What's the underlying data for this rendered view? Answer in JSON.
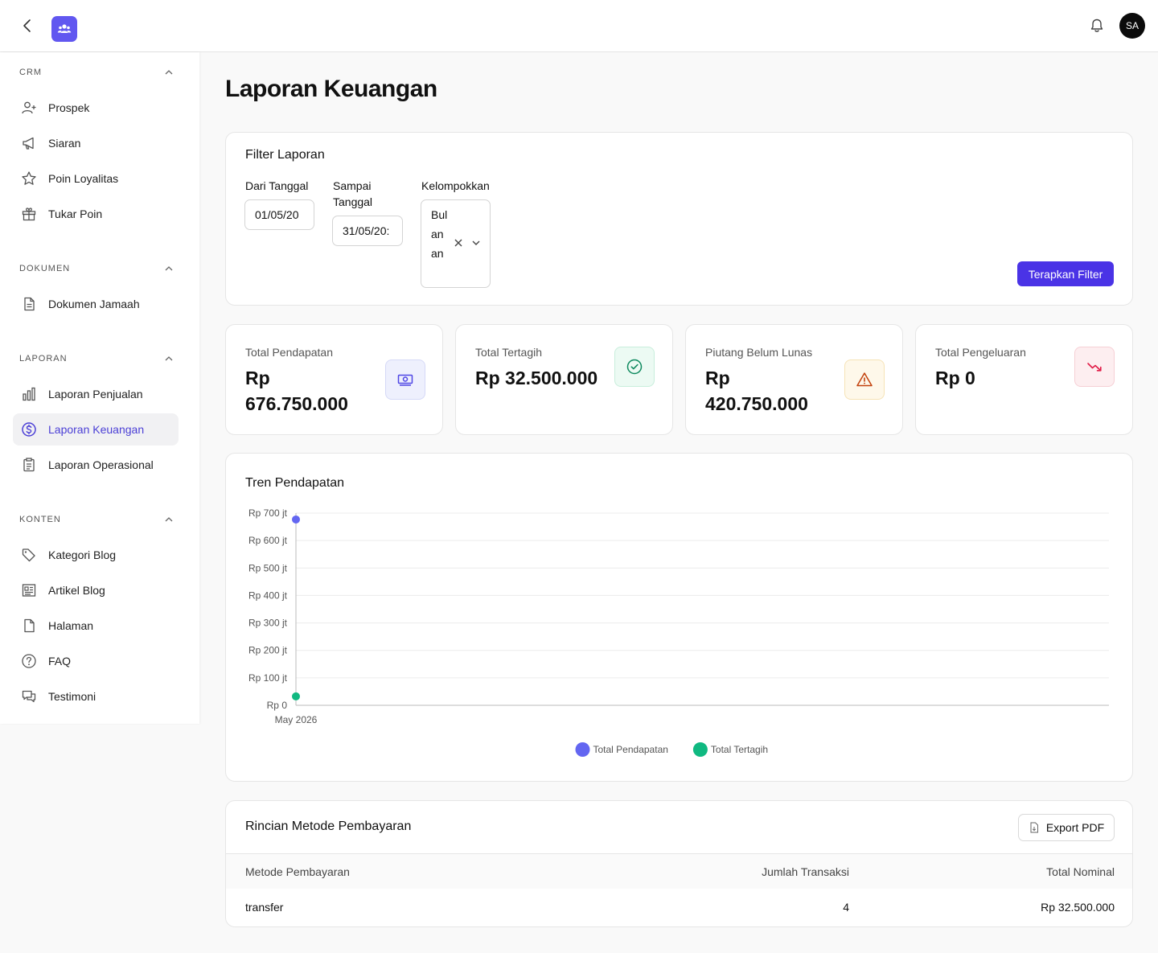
{
  "header": {
    "avatar_initials": "SA"
  },
  "sidebar": {
    "sections": [
      {
        "label": "CRM",
        "items": [
          {
            "label": "Prospek",
            "icon": "user-plus-icon"
          },
          {
            "label": "Siaran",
            "icon": "megaphone-icon"
          },
          {
            "label": "Poin Loyalitas",
            "icon": "star-icon"
          },
          {
            "label": "Tukar Poin",
            "icon": "gift-icon"
          }
        ]
      },
      {
        "label": "DOKUMEN",
        "items": [
          {
            "label": "Dokumen Jamaah",
            "icon": "document-icon"
          }
        ]
      },
      {
        "label": "LAPORAN",
        "items": [
          {
            "label": "Laporan Penjualan",
            "icon": "bar-chart-icon"
          },
          {
            "label": "Laporan Keuangan",
            "icon": "dollar-circle-icon",
            "active": true
          },
          {
            "label": "Laporan Operasional",
            "icon": "clipboard-icon"
          }
        ]
      },
      {
        "label": "KONTEN",
        "items": [
          {
            "label": "Kategori Blog",
            "icon": "tag-icon"
          },
          {
            "label": "Artikel Blog",
            "icon": "newspaper-icon"
          },
          {
            "label": "Halaman",
            "icon": "file-icon"
          },
          {
            "label": "FAQ",
            "icon": "question-circle-icon"
          },
          {
            "label": "Testimoni",
            "icon": "chat-bubbles-icon"
          }
        ]
      }
    ],
    "active_color": "#4b3fd6"
  },
  "page": {
    "title": "Laporan Keuangan"
  },
  "filter": {
    "title": "Filter Laporan",
    "from_label": "Dari Tanggal",
    "from_value": "01/05/20",
    "to_label_line1": "Sampai",
    "to_label_line2": "Tanggal",
    "to_value": "31/05/20:",
    "group_label": "Kelompokkan",
    "group_value": "Bulanan",
    "apply_label": "Terapkan Filter",
    "accent": "#4a33e6"
  },
  "stats": [
    {
      "label": "Total Pendapatan",
      "value_line1": "Rp",
      "value_line2": "676.750.000",
      "icon": "cash-icon",
      "bg": "#eef0fd",
      "border": "#d5d9f7",
      "color": "#4f46e5"
    },
    {
      "label": "Total Tertagih",
      "value_line1": "Rp 32.500.000",
      "value_line2": "",
      "icon": "check-circle-icon",
      "bg": "#ecfaf3",
      "border": "#c8eedc",
      "color": "#0f8a5f"
    },
    {
      "label": "Piutang Belum Lunas",
      "value_line1": "Rp",
      "value_line2": "420.750.000",
      "icon": "warning-icon",
      "bg": "#fef8ea",
      "border": "#f6e3b6",
      "color": "#c2410c"
    },
    {
      "label": "Total Pengeluaran",
      "value_line1": "Rp 0",
      "value_line2": "",
      "icon": "trending-down-icon",
      "bg": "#fdeef0",
      "border": "#f6cfd5",
      "color": "#e11d48"
    }
  ],
  "chart_data": {
    "type": "line",
    "title": "Tren Pendapatan",
    "categories": [
      "May 2026"
    ],
    "yticks": [
      "Rp 0",
      "Rp 100 jt",
      "Rp 200 jt",
      "Rp 300 jt",
      "Rp 400 jt",
      "Rp 500 jt",
      "Rp 600 jt",
      "Rp 700 jt"
    ],
    "ylim": [
      0,
      700000000
    ],
    "series": [
      {
        "name": "Total Pendapatan",
        "values": [
          676750000
        ],
        "color": "#6366f1"
      },
      {
        "name": "Total Tertagih",
        "values": [
          32500000
        ],
        "color": "#10b981"
      }
    ],
    "legend": "bottom-center",
    "grid": true
  },
  "payments": {
    "title": "Rincian Metode Pembayaran",
    "export_label": "Export PDF",
    "columns": [
      "Metode Pembayaran",
      "Jumlah Transaksi",
      "Total Nominal"
    ],
    "rows": [
      {
        "method": "transfer",
        "count": "4",
        "total": "Rp 32.500.000"
      }
    ]
  }
}
